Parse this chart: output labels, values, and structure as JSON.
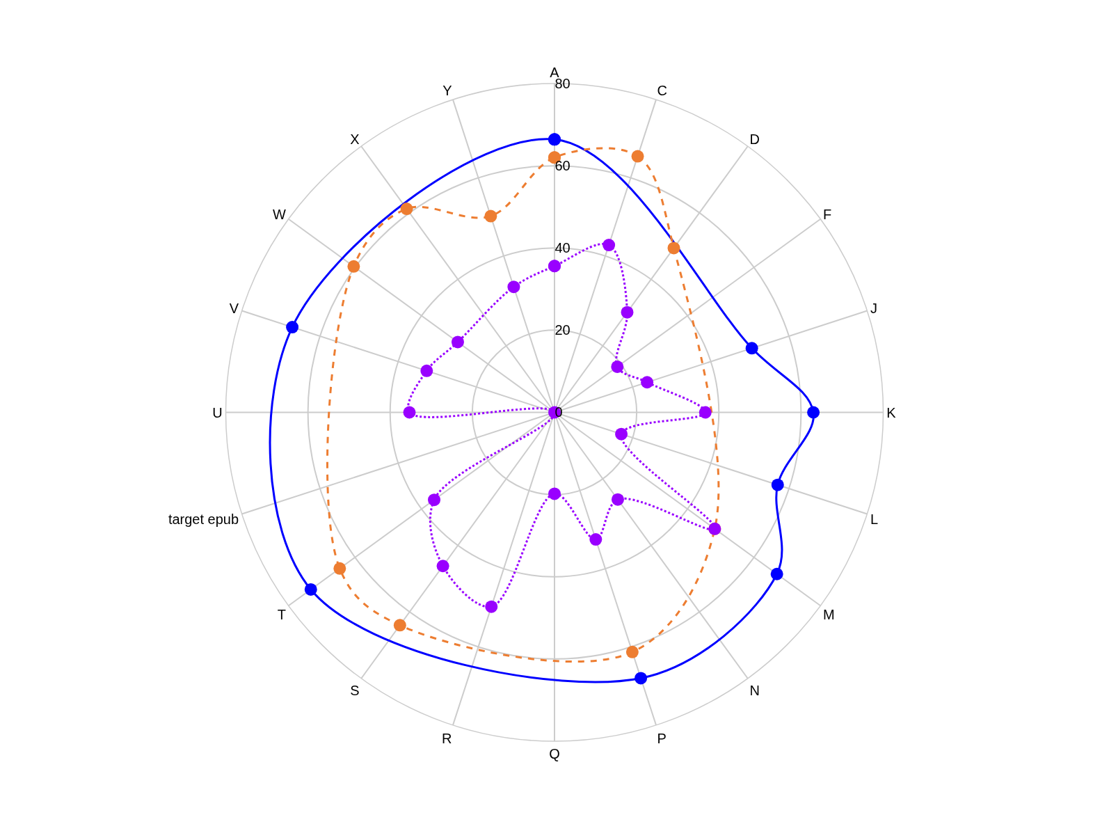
{
  "chart_data": {
    "type": "radar",
    "categories": [
      "A",
      "C",
      "D",
      "F",
      "J",
      "K",
      "L",
      "M",
      "N",
      "P",
      "Q",
      "R",
      "S",
      "T",
      "target epub",
      "U",
      "V",
      "W",
      "X",
      "Y"
    ],
    "series": [
      {
        "color": "#0000ff",
        "line_style": "solid",
        "values": [
          66.4,
          null,
          null,
          null,
          50.5,
          63,
          57.1,
          66.9,
          null,
          68,
          null,
          null,
          null,
          73.3,
          null,
          null,
          67.1,
          null,
          null,
          null
        ]
      },
      {
        "color": "#ed7d31",
        "line_style": "dashed",
        "values": [
          62,
          65.5,
          49.4,
          null,
          null,
          null,
          null,
          48.2,
          null,
          61.3,
          null,
          null,
          64,
          64.6,
          null,
          null,
          null,
          60.4,
          61.2,
          50.2
        ]
      },
      {
        "color": "#9900ff",
        "line_style": "dotted",
        "values": [
          35.6,
          42.8,
          30.1,
          18.9,
          23.7,
          36.7,
          17.1,
          48.2,
          26.2,
          32.5,
          19.8,
          49.7,
          46.2,
          36.2,
          0,
          35.3,
          32.7,
          29.1,
          null,
          32.1
        ]
      }
    ],
    "ylim": [
      0,
      80
    ],
    "yticks": [
      0,
      20,
      40,
      60,
      80
    ],
    "grid": true,
    "marker": "circle"
  }
}
